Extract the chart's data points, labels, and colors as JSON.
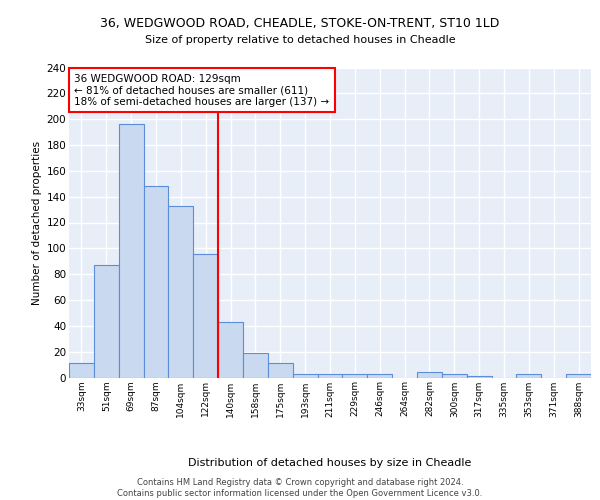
{
  "title1": "36, WEDGWOOD ROAD, CHEADLE, STOKE-ON-TRENT, ST10 1LD",
  "title2": "Size of property relative to detached houses in Cheadle",
  "xlabel": "Distribution of detached houses by size in Cheadle",
  "ylabel": "Number of detached properties",
  "bar_labels": [
    "33sqm",
    "51sqm",
    "69sqm",
    "87sqm",
    "104sqm",
    "122sqm",
    "140sqm",
    "158sqm",
    "175sqm",
    "193sqm",
    "211sqm",
    "229sqm",
    "246sqm",
    "264sqm",
    "282sqm",
    "300sqm",
    "317sqm",
    "335sqm",
    "353sqm",
    "371sqm",
    "388sqm"
  ],
  "bar_heights": [
    11,
    87,
    196,
    148,
    133,
    96,
    43,
    19,
    11,
    3,
    3,
    3,
    3,
    0,
    4,
    3,
    1,
    0,
    3,
    0,
    3
  ],
  "bar_color": "#c9d9f0",
  "bar_edge_color": "#5b8dd9",
  "vline_color": "red",
  "vline_pos": 5.5,
  "annotation_text": "36 WEDGWOOD ROAD: 129sqm\n← 81% of detached houses are smaller (611)\n18% of semi-detached houses are larger (137) →",
  "annotation_box_color": "white",
  "annotation_box_edge": "red",
  "ylim": [
    0,
    240
  ],
  "yticks": [
    0,
    20,
    40,
    60,
    80,
    100,
    120,
    140,
    160,
    180,
    200,
    220,
    240
  ],
  "background_color": "#e8eef8",
  "grid_color": "white",
  "footer_text": "Contains HM Land Registry data © Crown copyright and database right 2024.\nContains public sector information licensed under the Open Government Licence v3.0."
}
